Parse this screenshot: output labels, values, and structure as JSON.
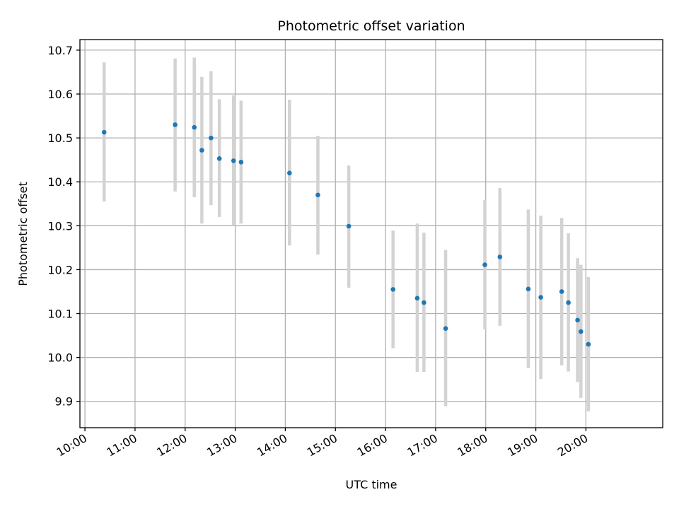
{
  "chart_data": {
    "type": "scatter",
    "title": "Photometric offset variation",
    "xlabel": "UTC time",
    "ylabel": "Photometric offset",
    "grid": true,
    "x_unit": "UTC time (HH:MM)",
    "xlim": [
      "09:54",
      "21:32"
    ],
    "ylim": [
      9.84,
      10.724
    ],
    "x_ticks": [
      "10:00",
      "11:00",
      "12:00",
      "13:00",
      "14:00",
      "15:00",
      "16:00",
      "17:00",
      "18:00",
      "19:00",
      "20:00"
    ],
    "y_ticks": [
      "9.9",
      "10.0",
      "10.1",
      "10.2",
      "10.3",
      "10.4",
      "10.5",
      "10.6",
      "10.7"
    ],
    "marker_color": "#1f77b4",
    "errorbar_color": "#d3d3d3",
    "points": [
      {
        "x": "10:23",
        "y": 10.513,
        "ylow": 10.355,
        "yhigh": 10.672
      },
      {
        "x": "11:48",
        "y": 10.53,
        "ylow": 10.378,
        "yhigh": 10.681
      },
      {
        "x": "12:11",
        "y": 10.524,
        "ylow": 10.365,
        "yhigh": 10.683
      },
      {
        "x": "12:20",
        "y": 10.472,
        "ylow": 10.305,
        "yhigh": 10.639
      },
      {
        "x": "12:31",
        "y": 10.5,
        "ylow": 10.347,
        "yhigh": 10.652
      },
      {
        "x": "12:41",
        "y": 10.453,
        "ylow": 10.32,
        "yhigh": 10.588
      },
      {
        "x": "12:58",
        "y": 10.448,
        "ylow": 10.3,
        "yhigh": 10.597
      },
      {
        "x": "13:07",
        "y": 10.445,
        "ylow": 10.305,
        "yhigh": 10.585
      },
      {
        "x": "14:05",
        "y": 10.42,
        "ylow": 10.255,
        "yhigh": 10.587
      },
      {
        "x": "14:39",
        "y": 10.37,
        "ylow": 10.234,
        "yhigh": 10.505
      },
      {
        "x": "15:16",
        "y": 10.299,
        "ylow": 10.159,
        "yhigh": 10.437
      },
      {
        "x": "16:09",
        "y": 10.155,
        "ylow": 10.021,
        "yhigh": 10.289
      },
      {
        "x": "16:38",
        "y": 10.135,
        "ylow": 9.967,
        "yhigh": 10.305
      },
      {
        "x": "16:46",
        "y": 10.125,
        "ylow": 9.967,
        "yhigh": 10.284
      },
      {
        "x": "17:12",
        "y": 10.066,
        "ylow": 9.889,
        "yhigh": 10.245
      },
      {
        "x": "17:59",
        "y": 10.211,
        "ylow": 10.064,
        "yhigh": 10.359
      },
      {
        "x": "18:17",
        "y": 10.229,
        "ylow": 10.072,
        "yhigh": 10.386
      },
      {
        "x": "18:51",
        "y": 10.156,
        "ylow": 9.976,
        "yhigh": 10.337
      },
      {
        "x": "19:06",
        "y": 10.137,
        "ylow": 9.951,
        "yhigh": 10.323
      },
      {
        "x": "19:31",
        "y": 10.15,
        "ylow": 9.982,
        "yhigh": 10.318
      },
      {
        "x": "19:39",
        "y": 10.125,
        "ylow": 9.968,
        "yhigh": 10.283
      },
      {
        "x": "19:50",
        "y": 10.085,
        "ylow": 9.944,
        "yhigh": 10.226
      },
      {
        "x": "19:54",
        "y": 10.059,
        "ylow": 9.908,
        "yhigh": 10.211
      },
      {
        "x": "20:03",
        "y": 10.03,
        "ylow": 9.877,
        "yhigh": 10.183
      }
    ]
  }
}
